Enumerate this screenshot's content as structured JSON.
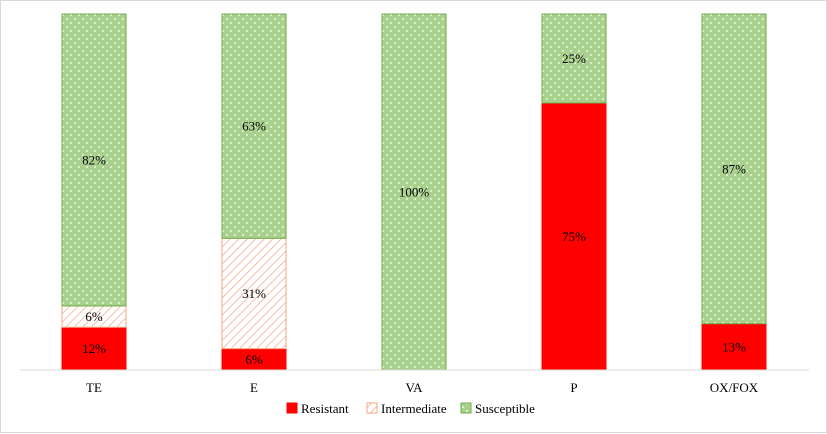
{
  "chart_data": {
    "type": "bar",
    "stacked": true,
    "percent": true,
    "categories": [
      "TE",
      "E",
      "VA",
      "P",
      "OX/FOX"
    ],
    "series": [
      {
        "name": "Resistant",
        "values": [
          12,
          6,
          0,
          75,
          13
        ],
        "labels": [
          "12%",
          "6%",
          "",
          "75%",
          "13%"
        ]
      },
      {
        "name": "Intermediate",
        "values": [
          6,
          31,
          0,
          0,
          0
        ],
        "labels": [
          "6%",
          "31%",
          "",
          "",
          ""
        ]
      },
      {
        "name": "Susceptible",
        "values": [
          82,
          63,
          100,
          25,
          87
        ],
        "labels": [
          "82%",
          "63%",
          "100%",
          "25%",
          "87%"
        ]
      }
    ],
    "ylim": [
      0,
      100
    ],
    "grid": false,
    "legend": "bottom-center",
    "colors": {
      "Resistant": "#ff0000",
      "Intermediate_fill": "#ffffff",
      "Intermediate_hatch": "#f4a582",
      "Susceptible": "#a9d18e",
      "Susceptible_border": "#70ad47",
      "axis": "#d9d9d9"
    }
  }
}
